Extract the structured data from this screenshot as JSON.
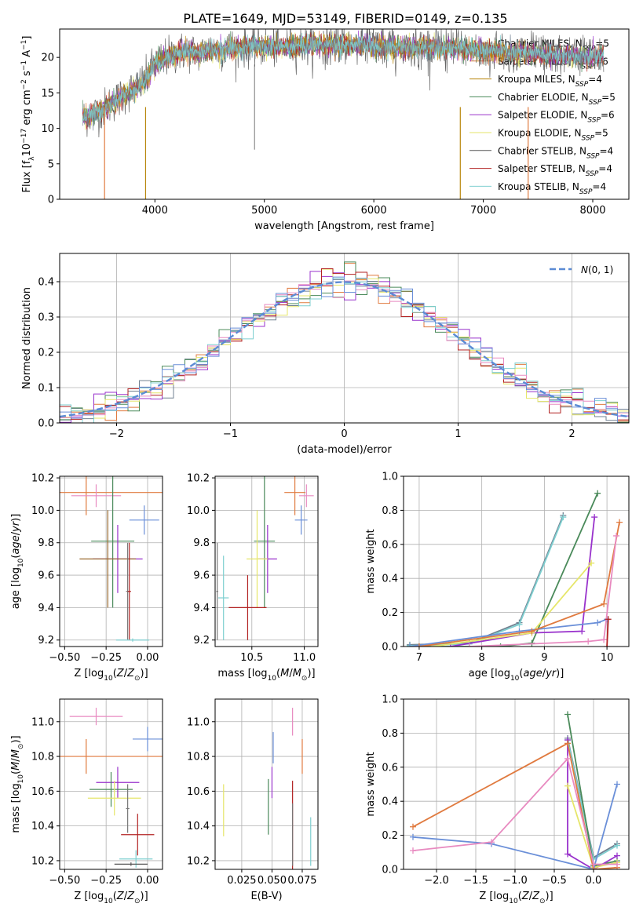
{
  "colors": [
    "#708090",
    "#ff7f50",
    "#b8860b",
    "#2e8b57",
    "#9932cc",
    "#f0e68c",
    "#555555",
    "#b22222",
    "#66cdaa"
  ],
  "title": "PLATE=1649, MJD=53149, FIBERID=0149, z=0.135",
  "chart_data": [
    {
      "id": "spectrum",
      "type": "line",
      "xlabel": "wavelength [Angstrom, rest frame]",
      "ylabel": "Flux [f_λ10^-17 erg cm^-2 s^-1 A^-1]",
      "xlim": [
        3130,
        8330
      ],
      "ylim": [
        0,
        24
      ],
      "xticks": [
        4000,
        5000,
        6000,
        7000,
        8000
      ],
      "yticks": [
        0,
        5,
        10,
        15,
        20
      ],
      "grid": false,
      "legend_position": "right",
      "legend": [
        "Chabrier MILES, N_SSP=5",
        "Salpeter MILES, N_SSP=6",
        "Kroupa MILES, N_SSP=4",
        "Chabrier ELODIE, N_SSP=5",
        "Salpeter ELODIE, N_SSP=6",
        "Kroupa ELODIE, N_SSP=5",
        "Chabrier STELIB, N_SSP=4",
        "Salpeter STELIB, N_SSP=4",
        "Kroupa STELIB, N_SSP=4"
      ],
      "series_colors": [
        "#708090",
        "#e07a3f",
        "#b8860b",
        "#4a8a5a",
        "#9932cc",
        "#e6e66a",
        "#555555",
        "#b22222",
        "#7ecfd0"
      ],
      "data_x": [
        3350,
        3400,
        3500,
        3600,
        3700,
        3800,
        3900,
        4000,
        4100,
        4200,
        4300,
        4400,
        4500,
        4600,
        4800,
        5000,
        5200,
        5500,
        5800,
        6000,
        6200,
        6500,
        6800,
        7000,
        7200,
        7400,
        7600,
        7800,
        8000,
        8100
      ],
      "data_y": [
        11.5,
        11.8,
        12.5,
        13.5,
        14.5,
        15.5,
        16.5,
        19,
        20,
        20.5,
        21,
        20.5,
        21.2,
        21,
        21.5,
        21.5,
        21.5,
        21.8,
        21.8,
        21.5,
        21.4,
        21.5,
        21.2,
        21,
        20.8,
        20.5,
        20.3,
        20.2,
        20,
        20.5
      ],
      "data_label": "#"
    },
    {
      "id": "residuals",
      "type": "histogram",
      "xlabel": "(data-model)/error",
      "ylabel": "Normed distribution",
      "xlim": [
        -2.5,
        2.5
      ],
      "ylim": [
        0,
        0.48
      ],
      "xticks": [
        -2,
        -1,
        0,
        1,
        2
      ],
      "yticks": [
        0.0,
        0.1,
        0.2,
        0.3,
        0.4
      ],
      "grid": true,
      "legend_position": "top-right",
      "legend": [
        "N(0,1)"
      ],
      "reference_line": "gaussian(0,1)",
      "bin_width": 0.1
    },
    {
      "id": "age-vs-z",
      "type": "errorbar",
      "xlabel": "Z [log10(Z/Z⊙)]",
      "ylabel": "age [log10(age/yr)]",
      "xlim": [
        -0.53,
        0.09
      ],
      "ylim": [
        9.16,
        10.21
      ],
      "xticks": [
        -0.5,
        -0.25,
        0.0
      ],
      "yticks": [
        9.2,
        9.4,
        9.6,
        9.8,
        10.0,
        10.2
      ],
      "grid": true,
      "points": [
        {
          "x": -0.37,
          "y": 10.11,
          "xerr": 0.47,
          "yerr": 0.14,
          "c": "#e07a3f"
        },
        {
          "x": -0.31,
          "y": 10.09,
          "xerr": 0.15,
          "yerr": 0.07,
          "c": "#e88ac0"
        },
        {
          "x": -0.02,
          "y": 9.94,
          "xerr": 0.09,
          "yerr": 0.09,
          "c": "#6a8fd8"
        },
        {
          "x": -0.21,
          "y": 9.81,
          "xerr": 0.13,
          "yerr": 0.41,
          "c": "#4a8a5a"
        },
        {
          "x": -0.18,
          "y": 9.7,
          "xerr": 0.15,
          "yerr": 0.21,
          "c": "#9932cc"
        },
        {
          "x": -0.24,
          "y": 9.7,
          "xerr": 0.17,
          "yerr": 0.3,
          "c": "#9a6a30"
        },
        {
          "x": -0.12,
          "y": 9.5,
          "xerr": 0.01,
          "yerr": 0.3,
          "c": "#777777"
        },
        {
          "x": -0.11,
          "y": 9.5,
          "xerr": 0.01,
          "yerr": 0.3,
          "c": "#b22222"
        },
        {
          "x": -0.09,
          "y": 9.2,
          "xerr": 0.1,
          "yerr": 0.01,
          "c": "#7ecfd0"
        }
      ]
    },
    {
      "id": "age-vs-mass",
      "type": "errorbar",
      "xlabel": "mass [log10(M/M⊙)]",
      "ylabel": "",
      "xlim": [
        10.15,
        11.13
      ],
      "ylim": [
        9.16,
        10.21
      ],
      "xticks": [
        10.5,
        11.0
      ],
      "yticks": [
        9.2,
        9.4,
        9.6,
        9.8,
        10.0,
        10.2
      ],
      "grid": true,
      "points": [
        {
          "x": 10.91,
          "y": 10.11,
          "xerr": 0.1,
          "yerr": 0.14,
          "c": "#e07a3f"
        },
        {
          "x": 11.02,
          "y": 10.09,
          "xerr": 0.07,
          "yerr": 0.07,
          "c": "#e88ac0"
        },
        {
          "x": 10.97,
          "y": 9.94,
          "xerr": 0.06,
          "yerr": 0.09,
          "c": "#6a8fd8"
        },
        {
          "x": 10.62,
          "y": 9.81,
          "xerr": 0.1,
          "yerr": 0.41,
          "c": "#4a8a5a"
        },
        {
          "x": 10.65,
          "y": 9.7,
          "xerr": 0.09,
          "yerr": 0.21,
          "c": "#9932cc"
        },
        {
          "x": 10.55,
          "y": 9.7,
          "xerr": 0.1,
          "yerr": 0.3,
          "c": "#e6e66a"
        },
        {
          "x": 10.17,
          "y": 9.5,
          "xerr": 0.01,
          "yerr": 0.3,
          "c": "#777777"
        },
        {
          "x": 10.46,
          "y": 9.4,
          "xerr": 0.18,
          "yerr": 0.2,
          "c": "#b22222"
        },
        {
          "x": 10.23,
          "y": 9.46,
          "xerr": 0.05,
          "yerr": 0.26,
          "c": "#7ecfd0"
        }
      ]
    },
    {
      "id": "weight-vs-age",
      "type": "line",
      "xlabel": "age [log10(age/yr)]",
      "ylabel": "mass weight",
      "xlim": [
        6.75,
        10.35
      ],
      "ylim": [
        0,
        1
      ],
      "xticks": [
        7,
        8,
        9,
        10
      ],
      "yticks": [
        0.0,
        0.2,
        0.4,
        0.6,
        0.8,
        1.0
      ],
      "grid": true,
      "series": [
        {
          "c": "#708090",
          "x": [
            6.85,
            7.8,
            8.6,
            9.3
          ],
          "y": [
            0.01,
            0.02,
            0.14,
            0.77
          ]
        },
        {
          "c": "#7ecfd0",
          "x": [
            6.85,
            7.8,
            8.6,
            9.3
          ],
          "y": [
            0.005,
            0.015,
            0.13,
            0.76
          ]
        },
        {
          "c": "#4a8a5a",
          "x": [
            7.0,
            8.3,
            8.8,
            9.85
          ],
          "y": [
            0.0,
            0.0,
            0.02,
            0.9
          ]
        },
        {
          "c": "#9932cc",
          "x": [
            7.5,
            8.8,
            9.6,
            9.8
          ],
          "y": [
            0.0,
            0.08,
            0.09,
            0.76
          ]
        },
        {
          "c": "#e6e66a",
          "x": [
            7.2,
            8.8,
            9.75
          ],
          "y": [
            0.0,
            0.08,
            0.49
          ]
        },
        {
          "c": "#6a8fd8",
          "x": [
            6.85,
            8.6,
            9.85,
            10.0
          ],
          "y": [
            0.0,
            0.09,
            0.14,
            0.16
          ]
        },
        {
          "c": "#e07a3f",
          "x": [
            7.0,
            8.8,
            9.95,
            10.2
          ],
          "y": [
            0.0,
            0.09,
            0.25,
            0.73
          ]
        },
        {
          "c": "#e88ac0",
          "x": [
            7.8,
            9.7,
            9.95,
            10.15
          ],
          "y": [
            0.0,
            0.03,
            0.04,
            0.65
          ]
        },
        {
          "c": "#b22222",
          "x": [
            10.0,
            10.02
          ],
          "y": [
            0.0,
            0.16
          ]
        }
      ]
    },
    {
      "id": "mass-vs-z",
      "type": "errorbar",
      "xlabel": "Z [log10(Z/Z⊙)]",
      "ylabel": "mass [log10(M/M⊙)]",
      "xlim": [
        -0.53,
        0.09
      ],
      "ylim": [
        10.15,
        11.13
      ],
      "xticks": [
        -0.5,
        -0.25,
        0.0
      ],
      "yticks": [
        10.2,
        10.4,
        10.6,
        10.8,
        11.0
      ],
      "grid": true,
      "points": [
        {
          "x": -0.31,
          "y": 11.03,
          "xerr": 0.16,
          "yerr": 0.05,
          "c": "#e88ac0"
        },
        {
          "x": 0.0,
          "y": 10.9,
          "xerr": 0.09,
          "yerr": 0.07,
          "c": "#6a8fd8"
        },
        {
          "x": -0.37,
          "y": 10.8,
          "xerr": 0.47,
          "yerr": 0.1,
          "c": "#e07a3f"
        },
        {
          "x": -0.18,
          "y": 10.65,
          "xerr": 0.13,
          "yerr": 0.09,
          "c": "#9932cc"
        },
        {
          "x": -0.22,
          "y": 10.61,
          "xerr": 0.13,
          "yerr": 0.1,
          "c": "#4a8a5a"
        },
        {
          "x": -0.2,
          "y": 10.56,
          "xerr": 0.16,
          "yerr": 0.1,
          "c": "#e6e66a"
        },
        {
          "x": -0.12,
          "y": 10.5,
          "xerr": 0.01,
          "yerr": 0.14,
          "c": "#777777"
        },
        {
          "x": -0.06,
          "y": 10.35,
          "xerr": 0.1,
          "yerr": 0.12,
          "c": "#b22222"
        },
        {
          "x": -0.07,
          "y": 10.21,
          "xerr": 0.1,
          "yerr": 0.05,
          "c": "#7ecfd0"
        },
        {
          "x": -0.1,
          "y": 10.18,
          "xerr": 0.1,
          "yerr": 0.01,
          "c": "#555555"
        }
      ]
    },
    {
      "id": "mass-vs-ebv",
      "type": "errorbar",
      "xlabel": "E(B-V)",
      "ylabel": "",
      "xlim": [
        0.003,
        0.088
      ],
      "ylim": [
        10.15,
        11.13
      ],
      "xticks": [
        0.025,
        0.05,
        0.075
      ],
      "xticklabels": [
        "0.025",
        "0.050",
        "0.075"
      ],
      "yticks": [
        10.2,
        10.4,
        10.6,
        10.8,
        11.0
      ],
      "grid": true,
      "points": [
        {
          "x": 0.067,
          "y": 11.0,
          "xerr": 0,
          "yerr": 0.08,
          "c": "#e88ac0"
        },
        {
          "x": 0.075,
          "y": 10.8,
          "xerr": 0,
          "yerr": 0.1,
          "c": "#e07a3f"
        },
        {
          "x": 0.051,
          "y": 10.85,
          "xerr": 0,
          "yerr": 0.09,
          "c": "#6a8fd8"
        },
        {
          "x": 0.05,
          "y": 10.65,
          "xerr": 0,
          "yerr": 0.09,
          "c": "#9932cc"
        },
        {
          "x": 0.047,
          "y": 10.51,
          "xerr": 0,
          "yerr": 0.16,
          "c": "#4a8a5a"
        },
        {
          "x": 0.01,
          "y": 10.49,
          "xerr": 0,
          "yerr": 0.15,
          "c": "#e6e66a"
        },
        {
          "x": 0.067,
          "y": 10.39,
          "xerr": 0,
          "yerr": 0.27,
          "c": "#b22222"
        },
        {
          "x": 0.067,
          "y": 10.35,
          "xerr": 0,
          "yerr": 0.18,
          "c": "#777777"
        },
        {
          "x": 0.082,
          "y": 10.31,
          "xerr": 0,
          "yerr": 0.14,
          "c": "#7ecfd0"
        }
      ]
    },
    {
      "id": "weight-vs-z",
      "type": "line",
      "xlabel": "Z [log10(Z/Z⊙)]",
      "ylabel": "mass weight",
      "xlim": [
        -2.42,
        0.45
      ],
      "ylim": [
        0,
        1
      ],
      "xticks": [
        -2.0,
        -1.5,
        -1.0,
        -0.5,
        0.0
      ],
      "yticks": [
        0.0,
        0.2,
        0.4,
        0.6,
        0.8,
        1.0
      ],
      "grid": true,
      "series": [
        {
          "c": "#708090",
          "x": [
            -0.33,
            0.0,
            0.3
          ],
          "y": [
            0.77,
            0.07,
            0.15
          ]
        },
        {
          "c": "#7ecfd0",
          "x": [
            -0.33,
            0.0,
            0.3
          ],
          "y": [
            0.76,
            0.06,
            0.14
          ]
        },
        {
          "c": "#4a8a5a",
          "x": [
            -0.33,
            0.0,
            0.3
          ],
          "y": [
            0.91,
            0.02,
            0.05
          ]
        },
        {
          "c": "#9932cc",
          "x": [
            -0.33,
            -0.33,
            0.0,
            0.3
          ],
          "y": [
            0.76,
            0.09,
            0.0,
            0.08
          ]
        },
        {
          "c": "#e6e66a",
          "x": [
            -0.33,
            0.0,
            0.3
          ],
          "y": [
            0.49,
            0.01,
            0.04
          ]
        },
        {
          "c": "#6a8fd8",
          "x": [
            -2.3,
            -1.3,
            0.0,
            0.3
          ],
          "y": [
            0.19,
            0.15,
            0.0,
            0.5
          ]
        },
        {
          "c": "#e07a3f",
          "x": [
            -2.3,
            -0.33,
            0.0,
            0.3
          ],
          "y": [
            0.25,
            0.74,
            0.0,
            0.01
          ]
        },
        {
          "c": "#e88ac0",
          "x": [
            -2.3,
            -1.3,
            -0.33,
            0.0,
            0.3
          ],
          "y": [
            0.11,
            0.16,
            0.65,
            0.03,
            0.03
          ]
        }
      ]
    }
  ]
}
